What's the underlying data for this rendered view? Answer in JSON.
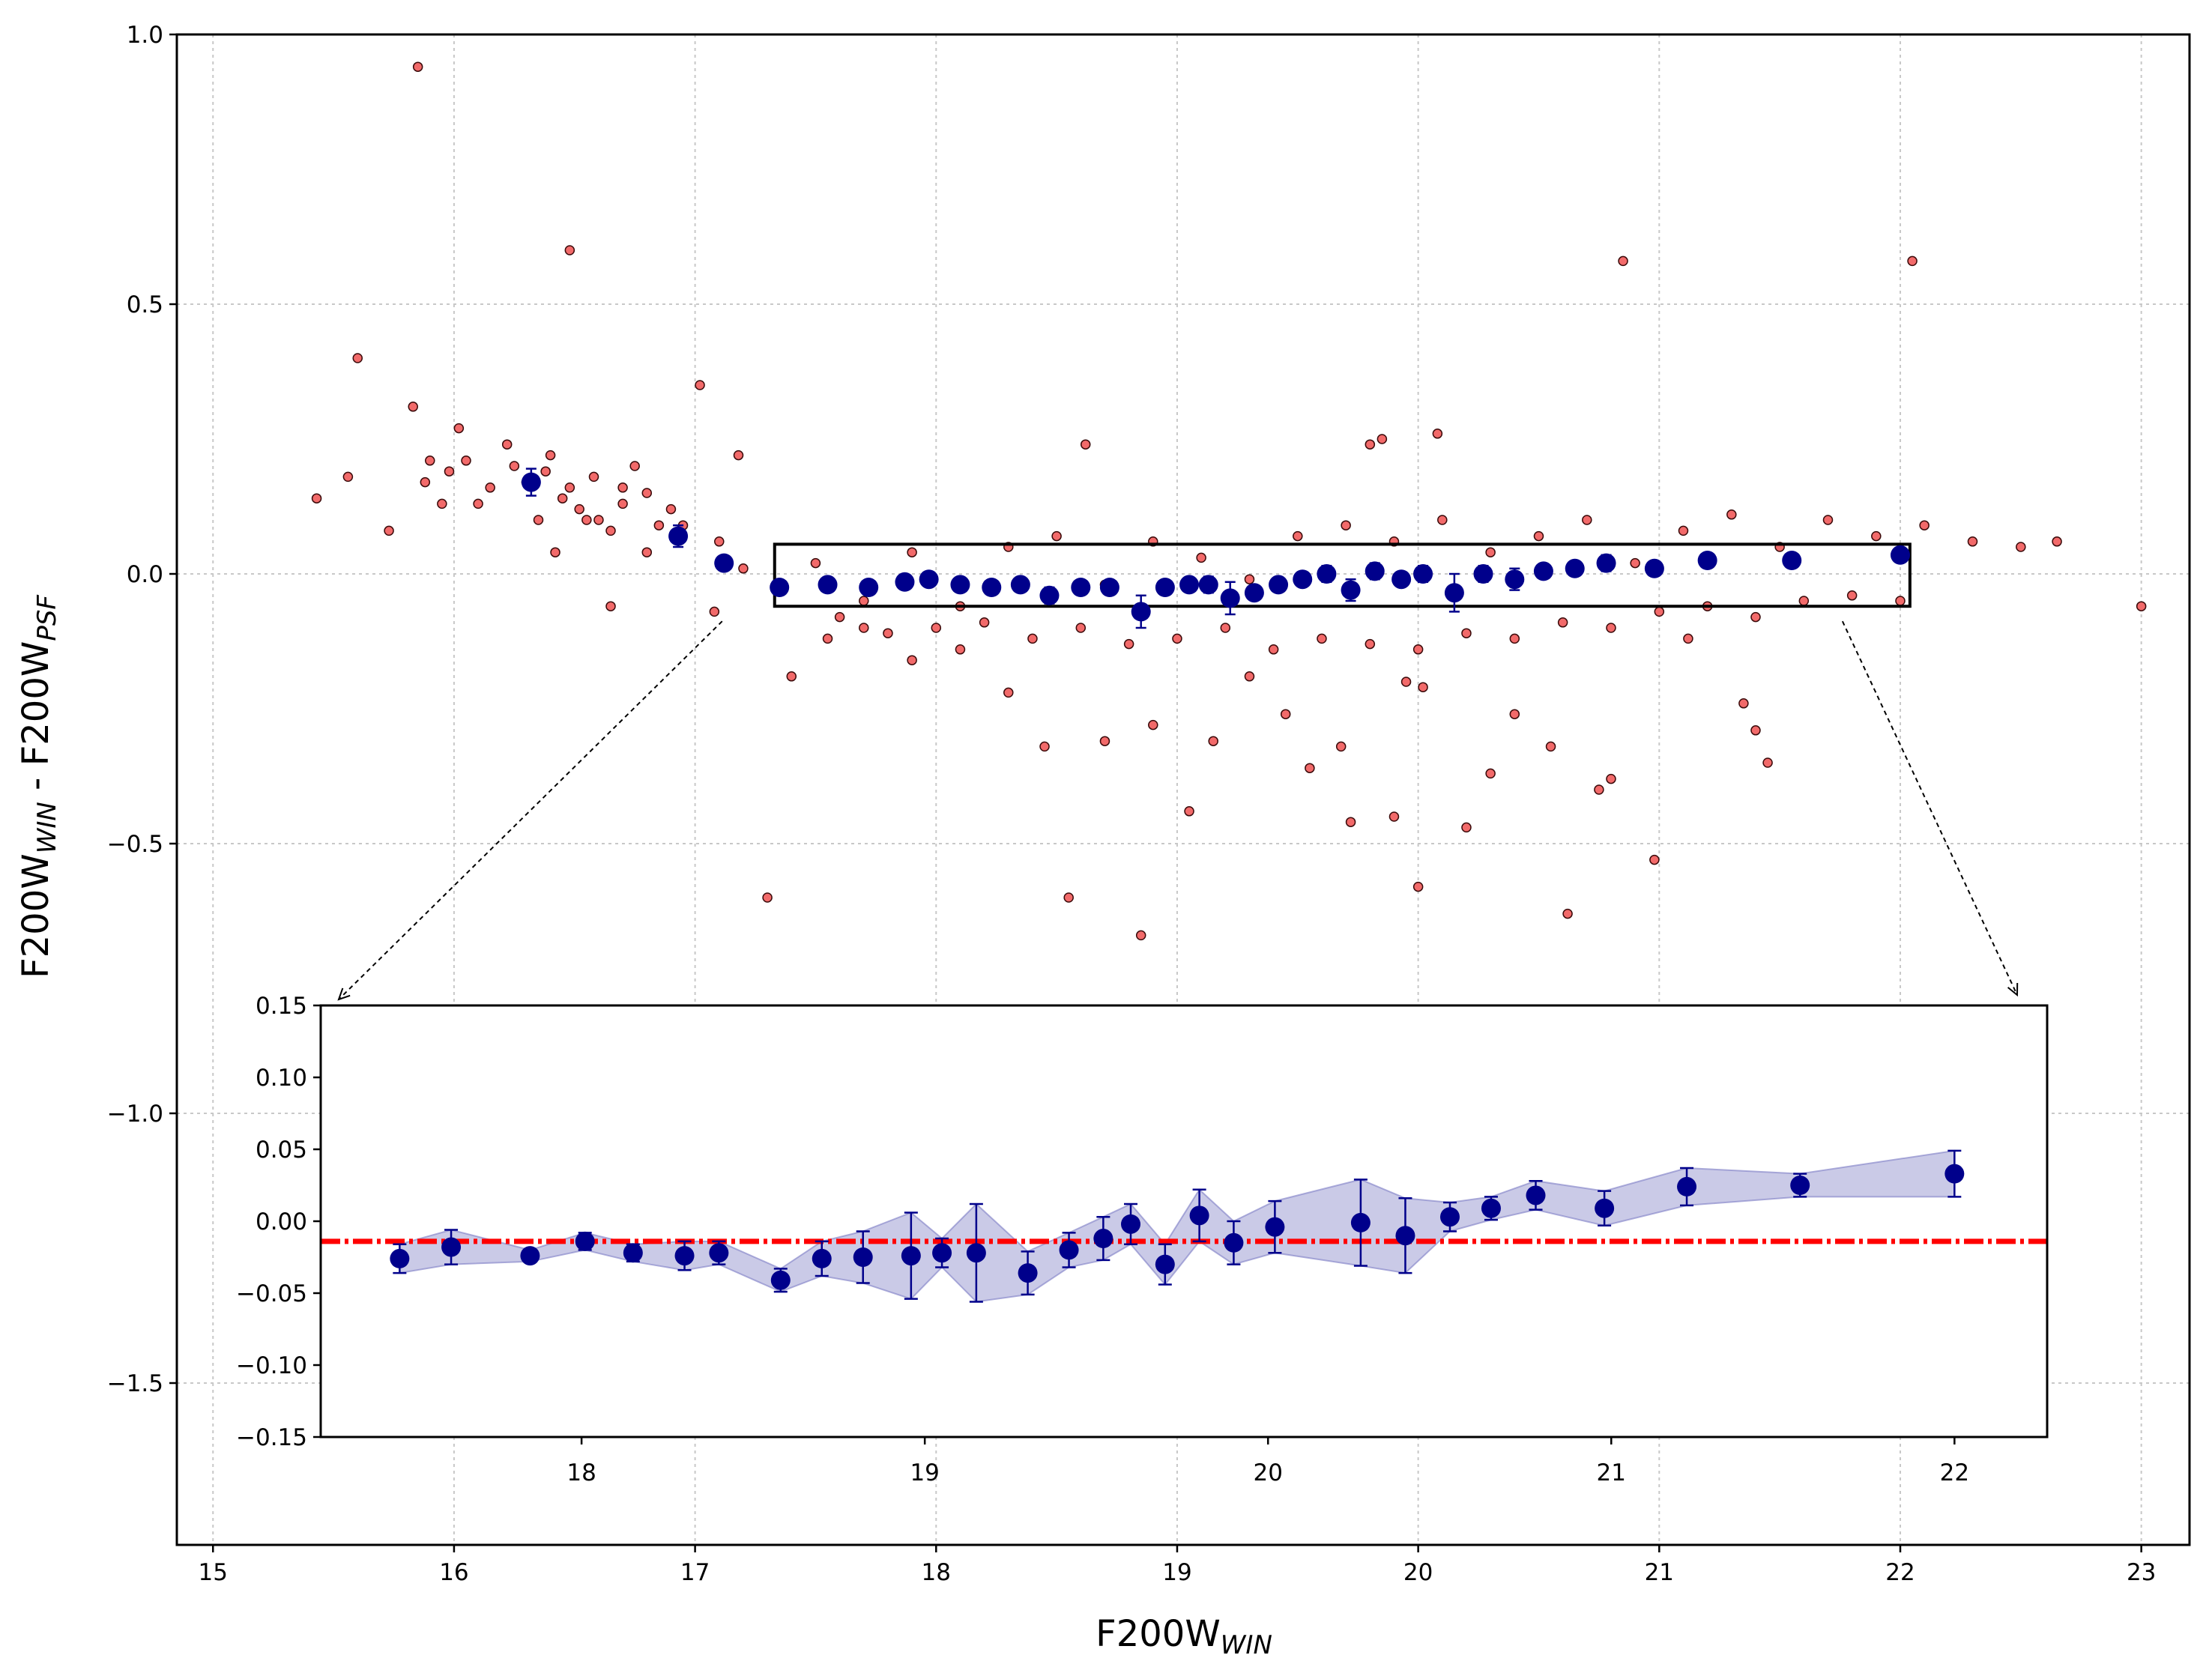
{
  "chart_data": [
    {
      "type": "scatter",
      "name": "main",
      "xlabel": "F200W",
      "xlabel_sub": "WIN",
      "ylabel": "F200W",
      "ylabel_sub1": "WIN",
      "ylabel_mid": " - F200W",
      "ylabel_sub2": "PSF",
      "xlim": [
        14.85,
        23.2
      ],
      "ylim": [
        -1.8,
        1.0
      ],
      "xticks": [
        15,
        16,
        17,
        18,
        19,
        20,
        21,
        22,
        23
      ],
      "yticks": [
        1.0,
        0.5,
        0.0,
        -0.5,
        -1.0,
        -1.5
      ],
      "ytick_labels": [
        "1.0",
        "0.5",
        "0.0",
        "−0.5",
        "−1.0",
        "−1.5"
      ],
      "grid": true,
      "highlight_box": {
        "x": [
          17.33,
          22.04
        ],
        "y": [
          -0.06,
          0.055
        ]
      },
      "series": [
        {
          "name": "sources",
          "color": "#f26a6a",
          "points": [
            [
              15.43,
              0.14
            ],
            [
              15.56,
              0.18
            ],
            [
              15.6,
              0.4
            ],
            [
              15.73,
              0.08
            ],
            [
              15.83,
              0.31
            ],
            [
              15.85,
              0.94
            ],
            [
              15.88,
              0.17
            ],
            [
              15.95,
              0.13
            ],
            [
              16.02,
              0.27
            ],
            [
              16.05,
              0.21
            ],
            [
              16.1,
              0.13
            ],
            [
              16.15,
              0.16
            ],
            [
              16.22,
              0.24
            ],
            [
              16.3,
              0.17
            ],
            [
              16.35,
              0.1
            ],
            [
              16.4,
              0.22
            ],
            [
              16.42,
              0.04
            ],
            [
              16.48,
              0.16
            ],
            [
              16.48,
              0.6
            ],
            [
              16.52,
              0.12
            ],
            [
              16.58,
              0.18
            ],
            [
              16.6,
              0.1
            ],
            [
              16.65,
              0.08
            ],
            [
              16.7,
              0.13
            ],
            [
              16.75,
              0.2
            ],
            [
              16.8,
              0.15
            ],
            [
              16.85,
              0.09
            ],
            [
              16.9,
              0.12
            ],
            [
              17.02,
              0.35
            ],
            [
              17.08,
              -0.07
            ],
            [
              17.18,
              0.22
            ],
            [
              17.3,
              -0.6
            ],
            [
              17.4,
              -0.19
            ],
            [
              17.55,
              -0.12
            ],
            [
              17.7,
              -0.1
            ],
            [
              17.9,
              -0.16
            ],
            [
              18.1,
              -0.14
            ],
            [
              18.3,
              -0.22
            ],
            [
              18.45,
              -0.32
            ],
            [
              18.55,
              -0.6
            ],
            [
              18.62,
              0.24
            ],
            [
              18.7,
              -0.31
            ],
            [
              18.85,
              -0.67
            ],
            [
              18.9,
              -0.28
            ],
            [
              19.05,
              -0.44
            ],
            [
              19.15,
              -0.31
            ],
            [
              19.3,
              -0.19
            ],
            [
              19.45,
              -0.26
            ],
            [
              19.55,
              -0.36
            ],
            [
              19.68,
              -0.32
            ],
            [
              19.72,
              -0.46
            ],
            [
              19.8,
              0.24
            ],
            [
              19.85,
              0.25
            ],
            [
              19.9,
              -0.45
            ],
            [
              19.95,
              -0.2
            ],
            [
              20.0,
              -0.58
            ],
            [
              20.02,
              -0.21
            ],
            [
              20.08,
              0.26
            ],
            [
              20.2,
              -0.47
            ],
            [
              20.3,
              -0.37
            ],
            [
              20.4,
              -0.26
            ],
            [
              20.55,
              -0.32
            ],
            [
              20.62,
              -0.63
            ],
            [
              20.75,
              -0.4
            ],
            [
              20.8,
              -0.38
            ],
            [
              20.85,
              0.58
            ],
            [
              20.98,
              -0.53
            ],
            [
              21.12,
              -0.12
            ],
            [
              21.35,
              -0.24
            ],
            [
              21.4,
              -0.29
            ],
            [
              21.45,
              -0.35
            ],
            [
              22.05,
              0.58
            ],
            [
              22.5,
              0.05
            ],
            [
              22.65,
              0.06
            ],
            [
              23.0,
              -0.06
            ],
            [
              17.5,
              0.02
            ],
            [
              17.7,
              -0.05
            ],
            [
              17.9,
              0.04
            ],
            [
              18.1,
              -0.06
            ],
            [
              18.3,
              0.05
            ],
            [
              18.5,
              0.07
            ],
            [
              18.7,
              -0.02
            ],
            [
              18.9,
              0.06
            ],
            [
              19.1,
              0.03
            ],
            [
              19.3,
              -0.01
            ],
            [
              19.5,
              0.07
            ],
            [
              19.7,
              0.09
            ],
            [
              19.9,
              0.06
            ],
            [
              20.1,
              0.1
            ],
            [
              20.3,
              0.04
            ],
            [
              20.5,
              0.07
            ],
            [
              20.7,
              0.1
            ],
            [
              20.9,
              0.02
            ],
            [
              21.1,
              0.08
            ],
            [
              21.3,
              0.11
            ],
            [
              21.5,
              0.05
            ],
            [
              21.7,
              0.1
            ],
            [
              21.9,
              0.07
            ],
            [
              22.1,
              0.09
            ],
            [
              22.3,
              0.06
            ],
            [
              17.6,
              -0.08
            ],
            [
              17.8,
              -0.11
            ],
            [
              18.0,
              -0.1
            ],
            [
              18.2,
              -0.09
            ],
            [
              18.4,
              -0.12
            ],
            [
              18.6,
              -0.1
            ],
            [
              18.8,
              -0.13
            ],
            [
              19.0,
              -0.12
            ],
            [
              19.2,
              -0.1
            ],
            [
              19.4,
              -0.14
            ],
            [
              19.6,
              -0.12
            ],
            [
              19.8,
              -0.13
            ],
            [
              20.0,
              -0.14
            ],
            [
              20.2,
              -0.11
            ],
            [
              20.4,
              -0.12
            ],
            [
              20.6,
              -0.09
            ],
            [
              20.8,
              -0.1
            ],
            [
              21.0,
              -0.07
            ],
            [
              21.2,
              -0.06
            ],
            [
              21.4,
              -0.08
            ],
            [
              21.6,
              -0.05
            ],
            [
              21.8,
              -0.04
            ],
            [
              22.0,
              -0.05
            ],
            [
              17.1,
              0.06
            ],
            [
              17.2,
              0.01
            ],
            [
              16.95,
              0.09
            ],
            [
              16.8,
              0.04
            ],
            [
              16.7,
              0.16
            ],
            [
              16.65,
              -0.06
            ],
            [
              16.55,
              0.1
            ],
            [
              16.45,
              0.14
            ],
            [
              16.38,
              0.19
            ],
            [
              16.25,
              0.2
            ],
            [
              15.98,
              0.19
            ],
            [
              15.9,
              0.21
            ]
          ]
        },
        {
          "name": "binned median",
          "color": "#00008b",
          "points": [
            [
              16.32,
              0.17,
              0.025,
              0.025
            ],
            [
              16.93,
              0.07,
              0.02,
              0.02
            ],
            [
              17.12,
              0.02,
              0.01,
              0.01
            ],
            [
              17.35,
              -0.025,
              0.012,
              0.012
            ],
            [
              17.55,
              -0.02,
              0.01,
              0.01
            ],
            [
              17.72,
              -0.025,
              0.01,
              0.01
            ],
            [
              17.87,
              -0.015,
              0.012,
              0.012
            ],
            [
              17.97,
              -0.01,
              0.01,
              0.01
            ],
            [
              18.1,
              -0.02,
              0.012,
              0.012
            ],
            [
              18.23,
              -0.025,
              0.01,
              0.01
            ],
            [
              18.35,
              -0.02,
              0.012,
              0.012
            ],
            [
              18.47,
              -0.04,
              0.015,
              0.015
            ],
            [
              18.6,
              -0.025,
              0.012,
              0.012
            ],
            [
              18.72,
              -0.025,
              0.012,
              0.012
            ],
            [
              18.85,
              -0.07,
              0.03,
              0.03
            ],
            [
              18.95,
              -0.025,
              0.012,
              0.012
            ],
            [
              19.05,
              -0.02,
              0.01,
              0.01
            ],
            [
              19.13,
              -0.02,
              0.015,
              0.015
            ],
            [
              19.22,
              -0.045,
              0.03,
              0.03
            ],
            [
              19.32,
              -0.035,
              0.012,
              0.012
            ],
            [
              19.42,
              -0.02,
              0.01,
              0.01
            ],
            [
              19.52,
              -0.01,
              0.01,
              0.01
            ],
            [
              19.62,
              0.0,
              0.015,
              0.015
            ],
            [
              19.72,
              -0.03,
              0.02,
              0.02
            ],
            [
              19.82,
              0.005,
              0.015,
              0.015
            ],
            [
              19.93,
              -0.01,
              0.012,
              0.012
            ],
            [
              20.02,
              0.0,
              0.015,
              0.015
            ],
            [
              20.15,
              -0.035,
              0.035,
              0.035
            ],
            [
              20.27,
              0.0,
              0.015,
              0.015
            ],
            [
              20.4,
              -0.01,
              0.02,
              0.02
            ],
            [
              20.52,
              0.005,
              0.012,
              0.012
            ],
            [
              20.65,
              0.01,
              0.012,
              0.012
            ],
            [
              20.78,
              0.02,
              0.015,
              0.015
            ],
            [
              20.98,
              0.01,
              0.012,
              0.012
            ],
            [
              21.2,
              0.025,
              0.012,
              0.012
            ],
            [
              21.55,
              0.025,
              0.01,
              0.01
            ],
            [
              22.0,
              0.035,
              0.012,
              0.012
            ]
          ]
        }
      ]
    },
    {
      "type": "line",
      "name": "inset",
      "xlim": [
        17.24,
        22.27
      ],
      "ylim": [
        -0.15,
        0.15
      ],
      "xticks": [
        18,
        19,
        20,
        21,
        22
      ],
      "yticks": [
        0.15,
        0.1,
        0.05,
        0.0,
        -0.05,
        -0.1,
        -0.15
      ],
      "ytick_labels": [
        "0.15",
        "0.10",
        "0.05",
        "0.00",
        "−0.05",
        "−0.10",
        "−0.15"
      ],
      "reference_line": {
        "y": -0.014,
        "color": "#ff0000",
        "style": "dashdot"
      },
      "band_color": "#7b7bc4",
      "series": [
        {
          "name": "binned median",
          "color": "#00008b",
          "x": [
            17.47,
            17.62,
            17.85,
            18.01,
            18.15,
            18.3,
            18.4,
            18.58,
            18.7,
            18.82,
            18.96,
            19.05,
            19.15,
            19.3,
            19.42,
            19.52,
            19.6,
            19.7,
            19.8,
            19.9,
            20.02,
            20.27,
            20.4,
            20.53,
            20.65,
            20.78,
            20.98,
            21.22,
            21.55,
            22.0
          ],
          "y": [
            -0.026,
            -0.018,
            -0.024,
            -0.014,
            -0.022,
            -0.024,
            -0.022,
            -0.041,
            -0.026,
            -0.025,
            -0.024,
            -0.022,
            -0.022,
            -0.036,
            -0.02,
            -0.012,
            -0.002,
            -0.03,
            0.004,
            -0.015,
            -0.004,
            -0.001,
            -0.01,
            0.003,
            0.009,
            0.018,
            0.009,
            0.024,
            0.025,
            0.033
          ],
          "err": [
            0.01,
            0.012,
            0.004,
            0.006,
            0.006,
            0.01,
            0.008,
            0.008,
            0.012,
            0.018,
            0.03,
            0.01,
            0.034,
            0.015,
            0.012,
            0.015,
            0.014,
            0.014,
            0.018,
            0.015,
            0.018,
            0.03,
            0.026,
            0.01,
            0.008,
            0.01,
            0.012,
            0.013,
            0.008,
            0.016
          ]
        }
      ]
    }
  ]
}
